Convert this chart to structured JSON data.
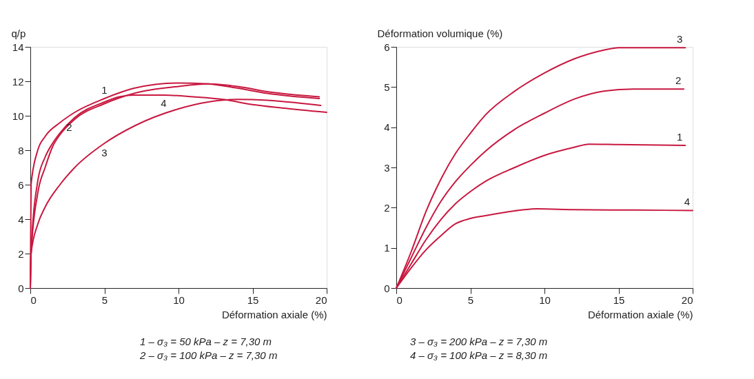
{
  "chart_data": [
    {
      "type": "line",
      "ylabel": "q/p",
      "xlabel": "Déformation axiale (%)",
      "xlim": [
        0,
        20
      ],
      "xticks": [
        0,
        5,
        10,
        15,
        20
      ],
      "ylim": [
        0,
        14
      ],
      "yticks": [
        0,
        2,
        4,
        6,
        8,
        10,
        12,
        14
      ],
      "grid": false,
      "legend": false,
      "marker": "none",
      "line_style": "solid",
      "annotations": [
        "1 – σ₃ = 50 kPa – z = 7,30 m",
        "2 – σ₃ = 100 kPa – z = 7,30 m"
      ],
      "series": [
        {
          "name": "1",
          "color": "#c8173f",
          "x": [
            0,
            0.05,
            0.5,
            1,
            2,
            3,
            5,
            7,
            10,
            12,
            14,
            16,
            19.5
          ],
          "values": [
            0,
            6,
            8,
            8.8,
            9.6,
            10.2,
            11,
            11.6,
            11.9,
            11.85,
            11.6,
            11.3,
            11.0
          ]
        },
        {
          "name": "2",
          "color": "#c8173f",
          "x": [
            0,
            0.05,
            0.5,
            1,
            1.5,
            2,
            3,
            5,
            7,
            10,
            12,
            14,
            16,
            19.5
          ],
          "values": [
            0,
            2,
            5.5,
            7,
            8.2,
            8.9,
            9.8,
            10.7,
            11.3,
            11.7,
            11.85,
            11.7,
            11.4,
            11.1
          ]
        },
        {
          "name": "4",
          "color": "#c8173f",
          "x": [
            0,
            0.05,
            0.5,
            1,
            1.5,
            2,
            3,
            5,
            6,
            7,
            9,
            11,
            13,
            15,
            17,
            20
          ],
          "values": [
            0,
            2,
            6.2,
            7.6,
            8.4,
            9.0,
            9.9,
            10.8,
            11.1,
            11.2,
            11.2,
            11.1,
            10.95,
            10.65,
            10.45,
            10.2
          ]
        },
        {
          "name": "3",
          "color": "#c8173f",
          "x": [
            0,
            0.05,
            0.5,
            1,
            2,
            3,
            5,
            7,
            10,
            12,
            14,
            16,
            18,
            19.6
          ],
          "values": [
            0,
            2,
            3.7,
            4.7,
            6.0,
            7.0,
            8.4,
            9.4,
            10.4,
            10.8,
            10.95,
            10.9,
            10.75,
            10.6
          ]
        }
      ]
    },
    {
      "type": "line",
      "ylabel": "Déformation volumique (%)",
      "xlabel": "Déformation axiale (%)",
      "xlim": [
        0,
        20
      ],
      "xticks": [
        0,
        5,
        10,
        15,
        20
      ],
      "ylim": [
        0,
        6
      ],
      "yticks": [
        0,
        1,
        2,
        3,
        4,
        5,
        6
      ],
      "grid": false,
      "legend": false,
      "marker": "none",
      "line_style": "solid",
      "annotations": [
        "3 – σ₃ = 200 kPa – z = 7,30 m",
        "4 – σ₃ = 100 kPa – z = 8,30 m"
      ],
      "series": [
        {
          "name": "3",
          "color": "#c8173f",
          "x": [
            0,
            1,
            2,
            3,
            4,
            5,
            6,
            8,
            10,
            12,
            14,
            15,
            19.5
          ],
          "values": [
            0,
            0.9,
            1.9,
            2.7,
            3.35,
            3.85,
            4.3,
            4.9,
            5.35,
            5.7,
            5.92,
            5.98,
            5.98
          ]
        },
        {
          "name": "2",
          "color": "#c8173f",
          "x": [
            0,
            1,
            2,
            3,
            4,
            5,
            6,
            8,
            10,
            12,
            14,
            16,
            19.4
          ],
          "values": [
            0,
            0.75,
            1.5,
            2.15,
            2.65,
            3.05,
            3.4,
            3.95,
            4.35,
            4.7,
            4.9,
            4.95,
            4.95
          ]
        },
        {
          "name": "1",
          "color": "#c8173f",
          "x": [
            0,
            1,
            2,
            3,
            4,
            5,
            6,
            8,
            10,
            12,
            13,
            15,
            19.5
          ],
          "values": [
            0,
            0.6,
            1.2,
            1.7,
            2.1,
            2.4,
            2.65,
            3.0,
            3.3,
            3.5,
            3.58,
            3.57,
            3.55
          ]
        },
        {
          "name": "4",
          "color": "#c8173f",
          "x": [
            0,
            1,
            2,
            3,
            4,
            5,
            6,
            8,
            9.5,
            12,
            16,
            20
          ],
          "values": [
            0,
            0.5,
            0.95,
            1.3,
            1.6,
            1.73,
            1.8,
            1.92,
            1.97,
            1.95,
            1.94,
            1.93
          ]
        }
      ]
    }
  ]
}
